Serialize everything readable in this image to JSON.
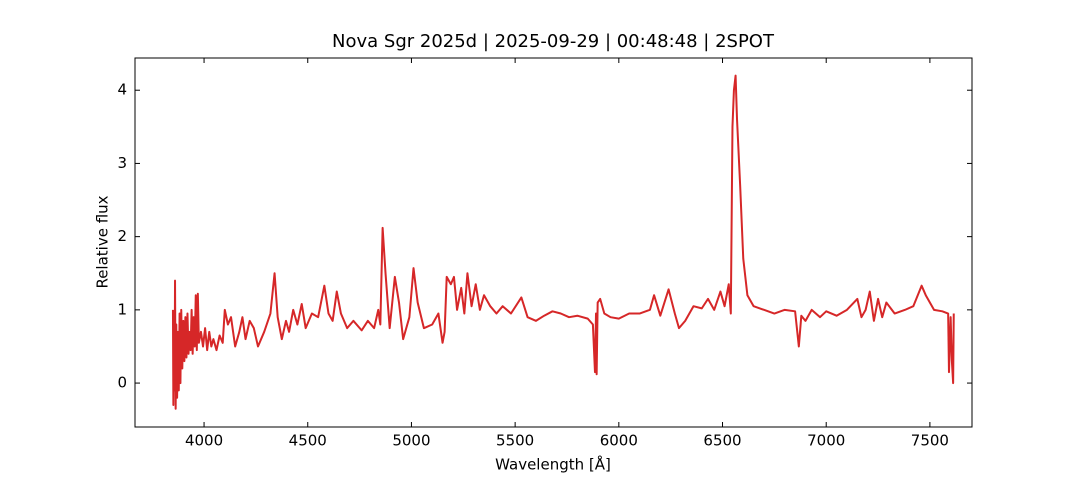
{
  "chart_data": {
    "type": "line",
    "title": "Nova Sgr 2025d | 2025-09-29 | 00:48:48 | 2SPOT",
    "xlabel": "Wavelength [Å]",
    "ylabel": "Relative flux",
    "color": "#d62728",
    "xlim": [
      3667,
      7703
    ],
    "ylim": [
      -0.6,
      4.44
    ],
    "xticks": [
      4000,
      4500,
      5000,
      5500,
      6000,
      6500,
      7000,
      7500
    ],
    "yticks": [
      0,
      1,
      2,
      3,
      4
    ],
    "x": [
      3850,
      3852,
      3855,
      3858,
      3860,
      3863,
      3866,
      3870,
      3874,
      3878,
      3882,
      3886,
      3890,
      3895,
      3900,
      3905,
      3910,
      3915,
      3920,
      3925,
      3930,
      3935,
      3940,
      3945,
      3950,
      3955,
      3960,
      3965,
      3970,
      3975,
      3985,
      3995,
      4005,
      4015,
      4025,
      4035,
      4045,
      4060,
      4075,
      4090,
      4100,
      4115,
      4130,
      4150,
      4170,
      4185,
      4200,
      4220,
      4240,
      4260,
      4290,
      4320,
      4340,
      4355,
      4375,
      4395,
      4410,
      4430,
      4450,
      4471,
      4490,
      4520,
      4550,
      4580,
      4600,
      4620,
      4640,
      4660,
      4690,
      4720,
      4760,
      4790,
      4820,
      4840,
      4850,
      4861,
      4875,
      4895,
      4920,
      4940,
      4960,
      4990,
      5010,
      5030,
      5060,
      5100,
      5130,
      5150,
      5160,
      5170,
      5190,
      5205,
      5220,
      5240,
      5255,
      5270,
      5290,
      5310,
      5330,
      5350,
      5380,
      5410,
      5440,
      5480,
      5530,
      5560,
      5600,
      5640,
      5680,
      5720,
      5760,
      5800,
      5850,
      5875,
      5885,
      5890,
      5893,
      5898,
      5910,
      5930,
      5960,
      6000,
      6050,
      6100,
      6150,
      6170,
      6200,
      6240,
      6270,
      6290,
      6320,
      6360,
      6400,
      6430,
      6460,
      6490,
      6510,
      6530,
      6540,
      6548,
      6555,
      6563,
      6570,
      6585,
      6600,
      6620,
      6650,
      6700,
      6750,
      6800,
      6850,
      6868,
      6880,
      6900,
      6930,
      6970,
      7000,
      7050,
      7100,
      7150,
      7170,
      7190,
      7210,
      7230,
      7250,
      7270,
      7290,
      7330,
      7380,
      7420,
      7460,
      7480,
      7520,
      7560,
      7588,
      7592,
      7600,
      7606,
      7612,
      7615
    ],
    "values": [
      1.0,
      -0.3,
      0.9,
      -0.1,
      1.4,
      -0.35,
      0.8,
      -0.2,
      0.7,
      -0.1,
      0.95,
      0.0,
      1.0,
      0.2,
      0.85,
      0.3,
      0.9,
      0.35,
      0.95,
      0.4,
      0.7,
      0.45,
      1.0,
      0.4,
      0.9,
      0.5,
      1.2,
      0.45,
      1.22,
      0.55,
      0.7,
      0.5,
      0.75,
      0.45,
      0.7,
      0.5,
      0.6,
      0.45,
      0.65,
      0.55,
      1.0,
      0.8,
      0.9,
      0.5,
      0.7,
      0.9,
      0.6,
      0.85,
      0.75,
      0.5,
      0.7,
      0.95,
      1.5,
      0.9,
      0.6,
      0.85,
      0.7,
      1.0,
      0.8,
      1.08,
      0.75,
      0.95,
      0.9,
      1.33,
      0.95,
      0.85,
      1.25,
      0.95,
      0.75,
      0.85,
      0.72,
      0.85,
      0.75,
      1.0,
      0.8,
      2.12,
      1.5,
      0.75,
      1.45,
      1.1,
      0.6,
      0.9,
      1.57,
      1.1,
      0.75,
      0.8,
      0.95,
      0.55,
      0.7,
      1.45,
      1.35,
      1.45,
      1.0,
      1.3,
      0.95,
      1.5,
      1.05,
      1.35,
      1.0,
      1.2,
      1.05,
      0.95,
      1.05,
      0.95,
      1.17,
      0.9,
      0.85,
      0.92,
      0.98,
      0.95,
      0.9,
      0.92,
      0.88,
      0.8,
      0.15,
      0.95,
      0.12,
      1.1,
      1.15,
      0.95,
      0.9,
      0.88,
      0.95,
      0.95,
      1.0,
      1.2,
      0.92,
      1.28,
      0.95,
      0.75,
      0.85,
      1.05,
      1.02,
      1.15,
      1.0,
      1.25,
      1.05,
      1.35,
      0.95,
      3.5,
      4.0,
      4.2,
      3.6,
      2.7,
      1.7,
      1.2,
      1.05,
      1.0,
      0.95,
      1.0,
      0.98,
      0.5,
      0.92,
      0.85,
      1.0,
      0.9,
      0.98,
      0.92,
      1.0,
      1.15,
      0.9,
      1.0,
      1.25,
      0.85,
      1.15,
      0.9,
      1.1,
      0.95,
      1.0,
      1.05,
      1.33,
      1.2,
      1.0,
      0.98,
      0.95,
      0.15,
      0.9,
      0.3,
      0.0,
      0.95
    ]
  }
}
